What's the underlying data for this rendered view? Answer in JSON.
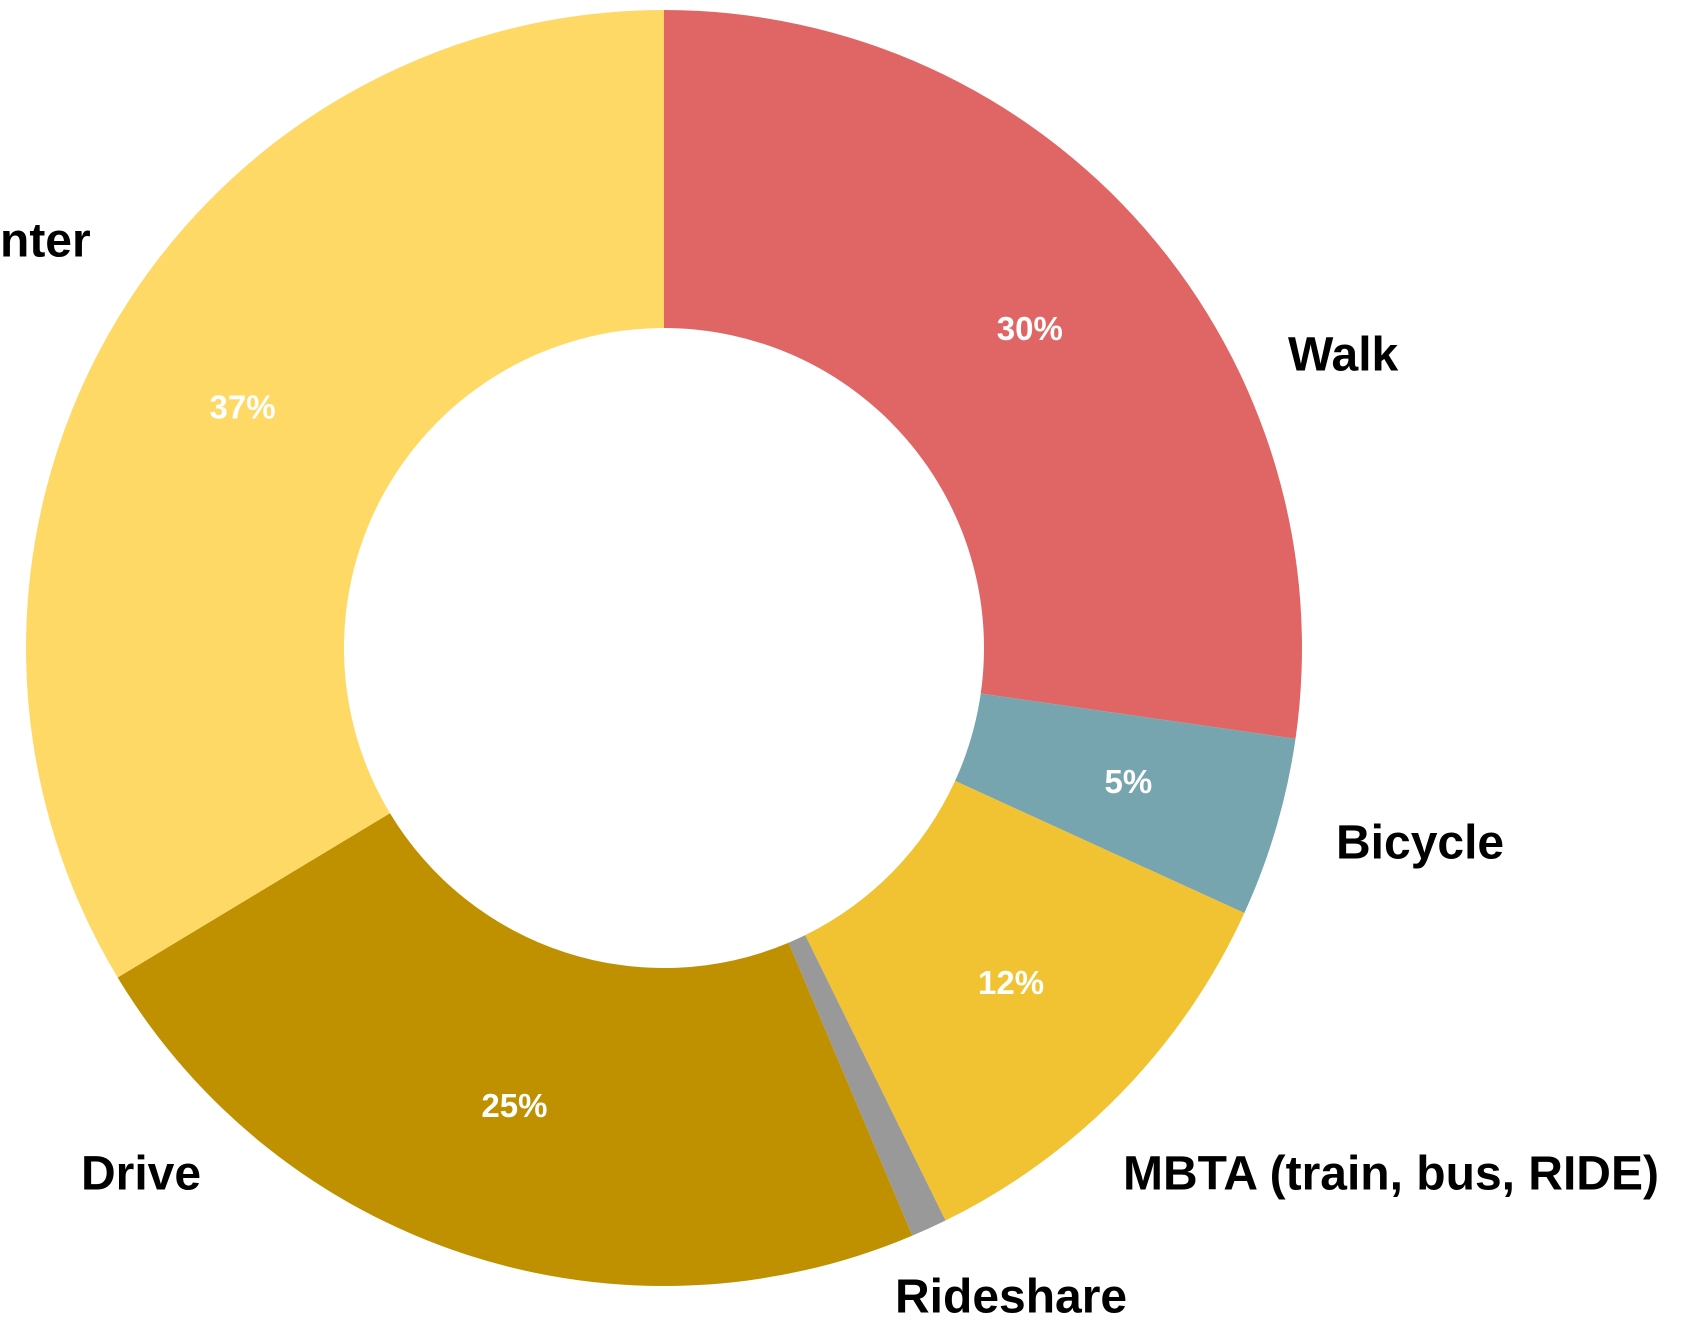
{
  "chart_data": {
    "type": "donut",
    "categories": [
      "Walk",
      "Bicycle",
      "MBTA (train, bus, RIDE)",
      "Rideshare",
      "Drive",
      "nter"
    ],
    "values": [
      30,
      5,
      12,
      1,
      25,
      37
    ],
    "value_labels": [
      "30%",
      "5%",
      "12%",
      null,
      "25%",
      "37%"
    ],
    "colors": [
      "#e06666",
      "#76a5af",
      "#f1c232",
      "#999999",
      "#bf9000",
      "#ffd966"
    ]
  }
}
